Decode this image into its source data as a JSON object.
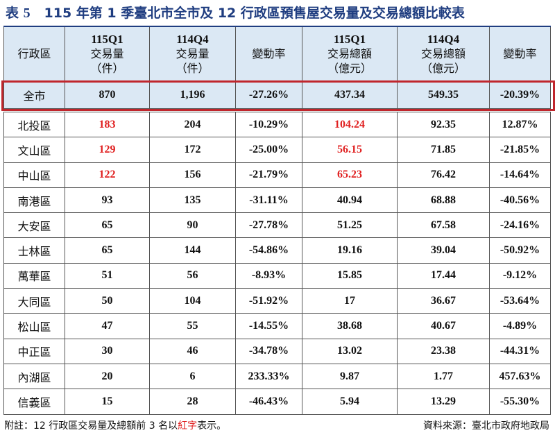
{
  "title": {
    "prefix": "表",
    "number": "5",
    "text": "115 年第 1 季臺北市全市及 12 行政區預售屋交易量及交易總額比較表"
  },
  "columns": [
    {
      "lines": [
        "行政區"
      ]
    },
    {
      "lines": [
        "115Q1",
        "交易量",
        "（件）"
      ]
    },
    {
      "lines": [
        "114Q4",
        "交易量",
        "（件）"
      ]
    },
    {
      "lines": [
        "變動率"
      ]
    },
    {
      "lines": [
        "115Q1",
        "交易總額",
        "（億元）"
      ]
    },
    {
      "lines": [
        "114Q4",
        "交易總額",
        "（億元）"
      ]
    },
    {
      "lines": [
        "變動率"
      ]
    }
  ],
  "total_row": {
    "district": "全市",
    "vol_q1": "870",
    "vol_q4": "1,196",
    "vol_chg": "-27.26%",
    "amt_q1": "437.34",
    "amt_q4": "549.35",
    "amt_chg": "-20.39%"
  },
  "rows": [
    {
      "district": "北投區",
      "vol_q1": "183",
      "vol_q4": "204",
      "vol_chg": "-10.29%",
      "amt_q1": "104.24",
      "amt_q4": "92.35",
      "amt_chg": "12.87%",
      "hl_vol": true,
      "hl_amt": true
    },
    {
      "district": "文山區",
      "vol_q1": "129",
      "vol_q4": "172",
      "vol_chg": "-25.00%",
      "amt_q1": "56.15",
      "amt_q4": "71.85",
      "amt_chg": "-21.85%",
      "hl_vol": true,
      "hl_amt": true
    },
    {
      "district": "中山區",
      "vol_q1": "122",
      "vol_q4": "156",
      "vol_chg": "-21.79%",
      "amt_q1": "65.23",
      "amt_q4": "76.42",
      "amt_chg": "-14.64%",
      "hl_vol": true,
      "hl_amt": true
    },
    {
      "district": "南港區",
      "vol_q1": "93",
      "vol_q4": "135",
      "vol_chg": "-31.11%",
      "amt_q1": "40.94",
      "amt_q4": "68.88",
      "amt_chg": "-40.56%",
      "hl_vol": false,
      "hl_amt": false
    },
    {
      "district": "大安區",
      "vol_q1": "65",
      "vol_q4": "90",
      "vol_chg": "-27.78%",
      "amt_q1": "51.25",
      "amt_q4": "67.58",
      "amt_chg": "-24.16%",
      "hl_vol": false,
      "hl_amt": false
    },
    {
      "district": "士林區",
      "vol_q1": "65",
      "vol_q4": "144",
      "vol_chg": "-54.86%",
      "amt_q1": "19.16",
      "amt_q4": "39.04",
      "amt_chg": "-50.92%",
      "hl_vol": false,
      "hl_amt": false
    },
    {
      "district": "萬華區",
      "vol_q1": "51",
      "vol_q4": "56",
      "vol_chg": "-8.93%",
      "amt_q1": "15.85",
      "amt_q4": "17.44",
      "amt_chg": "-9.12%",
      "hl_vol": false,
      "hl_amt": false
    },
    {
      "district": "大同區",
      "vol_q1": "50",
      "vol_q4": "104",
      "vol_chg": "-51.92%",
      "amt_q1": "17",
      "amt_q4": "36.67",
      "amt_chg": "-53.64%",
      "hl_vol": false,
      "hl_amt": false
    },
    {
      "district": "松山區",
      "vol_q1": "47",
      "vol_q4": "55",
      "vol_chg": "-14.55%",
      "amt_q1": "38.68",
      "amt_q4": "40.67",
      "amt_chg": "-4.89%",
      "hl_vol": false,
      "hl_amt": false
    },
    {
      "district": "中正區",
      "vol_q1": "30",
      "vol_q4": "46",
      "vol_chg": "-34.78%",
      "amt_q1": "13.02",
      "amt_q4": "23.38",
      "amt_chg": "-44.31%",
      "hl_vol": false,
      "hl_amt": false
    },
    {
      "district": "內湖區",
      "vol_q1": "20",
      "vol_q4": "6",
      "vol_chg": "233.33%",
      "amt_q1": "9.87",
      "amt_q4": "1.77",
      "amt_chg": "457.63%",
      "hl_vol": false,
      "hl_amt": false
    },
    {
      "district": "信義區",
      "vol_q1": "15",
      "vol_q4": "28",
      "vol_chg": "-46.43%",
      "amt_q1": "5.94",
      "amt_q4": "13.29",
      "amt_chg": "-55.30%",
      "hl_vol": false,
      "hl_amt": false
    }
  ],
  "footer": {
    "note_prefix": "附註：12 行政區交易量及總額前 3 名以",
    "note_highlight": "紅字",
    "note_suffix": "表示。",
    "source": "資料來源：臺北市政府地政局"
  },
  "colors": {
    "header_bg": "#dbe8f4",
    "title": "#1f3d80",
    "highlight_red": "#e02020",
    "total_border": "#c0262c"
  }
}
